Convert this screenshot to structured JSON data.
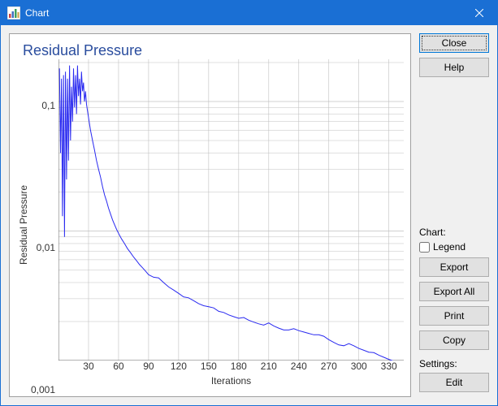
{
  "window": {
    "title": "Chart"
  },
  "buttons": {
    "close": "Close",
    "help": "Help",
    "export": "Export",
    "export_all": "Export All",
    "print": "Print",
    "copy": "Copy",
    "edit": "Edit"
  },
  "labels": {
    "chart_section": "Chart:",
    "legend_checkbox": "Legend",
    "settings_section": "Settings:"
  },
  "state": {
    "legend_checked": false
  },
  "chart": {
    "type": "line",
    "title": "Residual Pressure",
    "title_color": "#2a4d9e",
    "title_fontsize": 18,
    "xlabel": "Iterations",
    "ylabel": "Residual Pressure",
    "label_fontsize": 12,
    "line_color": "#2929f0",
    "line_width": 1,
    "background_color": "#ffffff",
    "axis_color": "#666666",
    "grid_color": "#c0c0c0",
    "xscale": "linear",
    "yscale": "log",
    "xlim": [
      0,
      340
    ],
    "ylim": [
      0.001,
      0.2
    ],
    "xticks": [
      30,
      60,
      90,
      120,
      150,
      180,
      210,
      240,
      270,
      300,
      330
    ],
    "yticks": [
      0.001,
      0.01,
      0.1
    ],
    "ytick_labels": [
      "0,001",
      "0,01",
      "0,1"
    ],
    "grid_on": true,
    "decimal_separator": ",",
    "series": [
      {
        "name": "Residual Pressure",
        "color": "#2929f0",
        "data": [
          [
            1,
            0.18
          ],
          [
            2,
            0.04
          ],
          [
            3,
            0.15
          ],
          [
            4,
            0.013
          ],
          [
            5,
            0.16
          ],
          [
            6,
            0.009
          ],
          [
            7,
            0.17
          ],
          [
            8,
            0.025
          ],
          [
            9,
            0.15
          ],
          [
            10,
            0.035
          ],
          [
            11,
            0.19
          ],
          [
            12,
            0.05
          ],
          [
            13,
            0.13
          ],
          [
            14,
            0.07
          ],
          [
            15,
            0.18
          ],
          [
            16,
            0.09
          ],
          [
            17,
            0.16
          ],
          [
            18,
            0.08
          ],
          [
            19,
            0.19
          ],
          [
            20,
            0.11
          ],
          [
            21,
            0.15
          ],
          [
            22,
            0.095
          ],
          [
            23,
            0.17
          ],
          [
            24,
            0.12
          ],
          [
            25,
            0.14
          ],
          [
            26,
            0.1
          ],
          [
            27,
            0.12
          ],
          [
            28,
            0.095
          ],
          [
            30,
            0.075
          ],
          [
            32,
            0.06
          ],
          [
            34,
            0.05
          ],
          [
            36,
            0.042
          ],
          [
            38,
            0.035
          ],
          [
            40,
            0.03
          ],
          [
            42,
            0.026
          ],
          [
            44,
            0.022
          ],
          [
            46,
            0.019
          ],
          [
            48,
            0.017
          ],
          [
            50,
            0.015
          ],
          [
            52,
            0.0135
          ],
          [
            54,
            0.0122
          ],
          [
            56,
            0.0112
          ],
          [
            58,
            0.0103
          ],
          [
            60,
            0.0096
          ],
          [
            63,
            0.0087
          ],
          [
            66,
            0.008
          ],
          [
            69,
            0.0073
          ],
          [
            72,
            0.0068
          ],
          [
            75,
            0.0063
          ],
          [
            78,
            0.0059
          ],
          [
            81,
            0.0055
          ],
          [
            84,
            0.0052
          ],
          [
            87,
            0.0049
          ],
          [
            90,
            0.0046
          ],
          [
            95,
            0.0044
          ],
          [
            100,
            0.00435
          ],
          [
            105,
            0.004
          ],
          [
            110,
            0.0037
          ],
          [
            115,
            0.0035
          ],
          [
            120,
            0.0033
          ],
          [
            125,
            0.0031
          ],
          [
            130,
            0.00305
          ],
          [
            135,
            0.0029
          ],
          [
            140,
            0.00275
          ],
          [
            145,
            0.00265
          ],
          [
            150,
            0.0026
          ],
          [
            155,
            0.00255
          ],
          [
            160,
            0.0024
          ],
          [
            165,
            0.00235
          ],
          [
            170,
            0.00225
          ],
          [
            175,
            0.00218
          ],
          [
            180,
            0.00212
          ],
          [
            185,
            0.00215
          ],
          [
            190,
            0.00205
          ],
          [
            195,
            0.00198
          ],
          [
            200,
            0.00192
          ],
          [
            205,
            0.00188
          ],
          [
            210,
            0.00195
          ],
          [
            215,
            0.00185
          ],
          [
            220,
            0.00178
          ],
          [
            225,
            0.00172
          ],
          [
            230,
            0.00172
          ],
          [
            235,
            0.00176
          ],
          [
            240,
            0.0017
          ],
          [
            245,
            0.00166
          ],
          [
            250,
            0.00162
          ],
          [
            255,
            0.00158
          ],
          [
            260,
            0.00158
          ],
          [
            265,
            0.00154
          ],
          [
            270,
            0.00145
          ],
          [
            275,
            0.00138
          ],
          [
            280,
            0.00132
          ],
          [
            285,
            0.0013
          ],
          [
            290,
            0.00135
          ],
          [
            295,
            0.0013
          ],
          [
            300,
            0.00124
          ],
          [
            305,
            0.0012
          ],
          [
            310,
            0.00116
          ],
          [
            315,
            0.00115
          ],
          [
            320,
            0.0011
          ],
          [
            325,
            0.00106
          ],
          [
            330,
            0.00102
          ],
          [
            335,
            0.00099
          ],
          [
            340,
            0.00098
          ]
        ]
      }
    ]
  }
}
